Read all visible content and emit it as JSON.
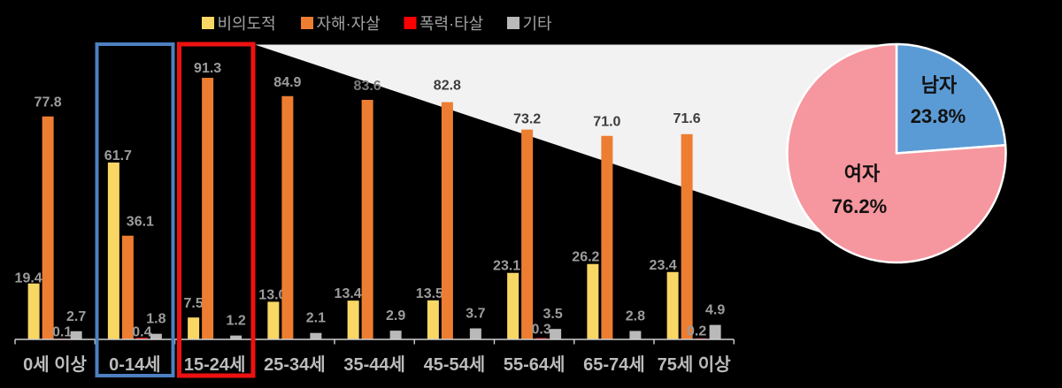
{
  "background": "#000000",
  "legend": {
    "items": [
      {
        "label": "비의도적",
        "color": "#F9D765"
      },
      {
        "label": "자해·자살",
        "color": "#ED7D31"
      },
      {
        "label": "폭력·타살",
        "color": "#FF0000"
      },
      {
        "label": "기타",
        "color": "#B9B9B9"
      }
    ]
  },
  "chart_data": [
    {
      "type": "bar",
      "title": "",
      "categories": [
        "0세 이상",
        "0-14세",
        "15-24세",
        "25-34세",
        "35-44세",
        "45-54세",
        "55-64세",
        "65-74세",
        "75세 이상"
      ],
      "series": [
        {
          "key": "unintentional",
          "name": "비의도적",
          "color": "#F9D765",
          "values": [
            19.4,
            61.7,
            7.5,
            13.0,
            13.4,
            13.5,
            23.1,
            26.2,
            23.4
          ]
        },
        {
          "key": "selfharm",
          "name": "자해·자살",
          "color": "#ED7D31",
          "values": [
            77.8,
            36.1,
            91.3,
            84.9,
            83.6,
            82.8,
            73.2,
            71.0,
            71.6
          ],
          "label_shades": [
            "light",
            "light",
            "light",
            "light",
            "mid",
            "dark",
            "dark",
            "dark",
            "dark"
          ]
        },
        {
          "key": "violence",
          "name": "폭력·타살",
          "color": "#FF0000",
          "values": [
            0.1,
            0.4,
            null,
            null,
            null,
            null,
            0.3,
            null,
            0.2
          ]
        },
        {
          "key": "other",
          "name": "기타",
          "color": "#B9B9B9",
          "values": [
            2.7,
            1.8,
            1.2,
            2.1,
            2.9,
            3.7,
            3.5,
            2.8,
            4.9
          ]
        }
      ],
      "ylim": [
        0,
        100
      ],
      "grid": false,
      "value_labels": true,
      "label_colors": {
        "light": "#9c9c9c",
        "mid": "#7a7a7a",
        "dark": "#3d3d3d"
      },
      "axis_color": "#cfcfcf",
      "category_label_color": "#bcbcbc"
    },
    {
      "type": "pie",
      "slices": [
        {
          "label": "남자",
          "value_text": "23.8%",
          "pct": 23.8,
          "color": "#5B9BD5"
        },
        {
          "label": "여자",
          "value_text": "76.2%",
          "pct": 76.2,
          "color": "#F6969E"
        }
      ],
      "label_color": "#111111",
      "outline_color": "#ffffff"
    }
  ],
  "highlights": [
    {
      "category": "0-14세",
      "color": "#4D80C0"
    },
    {
      "category": "15-24세",
      "color": "#EE1111"
    }
  ],
  "callout": {
    "shape": "wedge",
    "color": "#F2F2F2"
  }
}
